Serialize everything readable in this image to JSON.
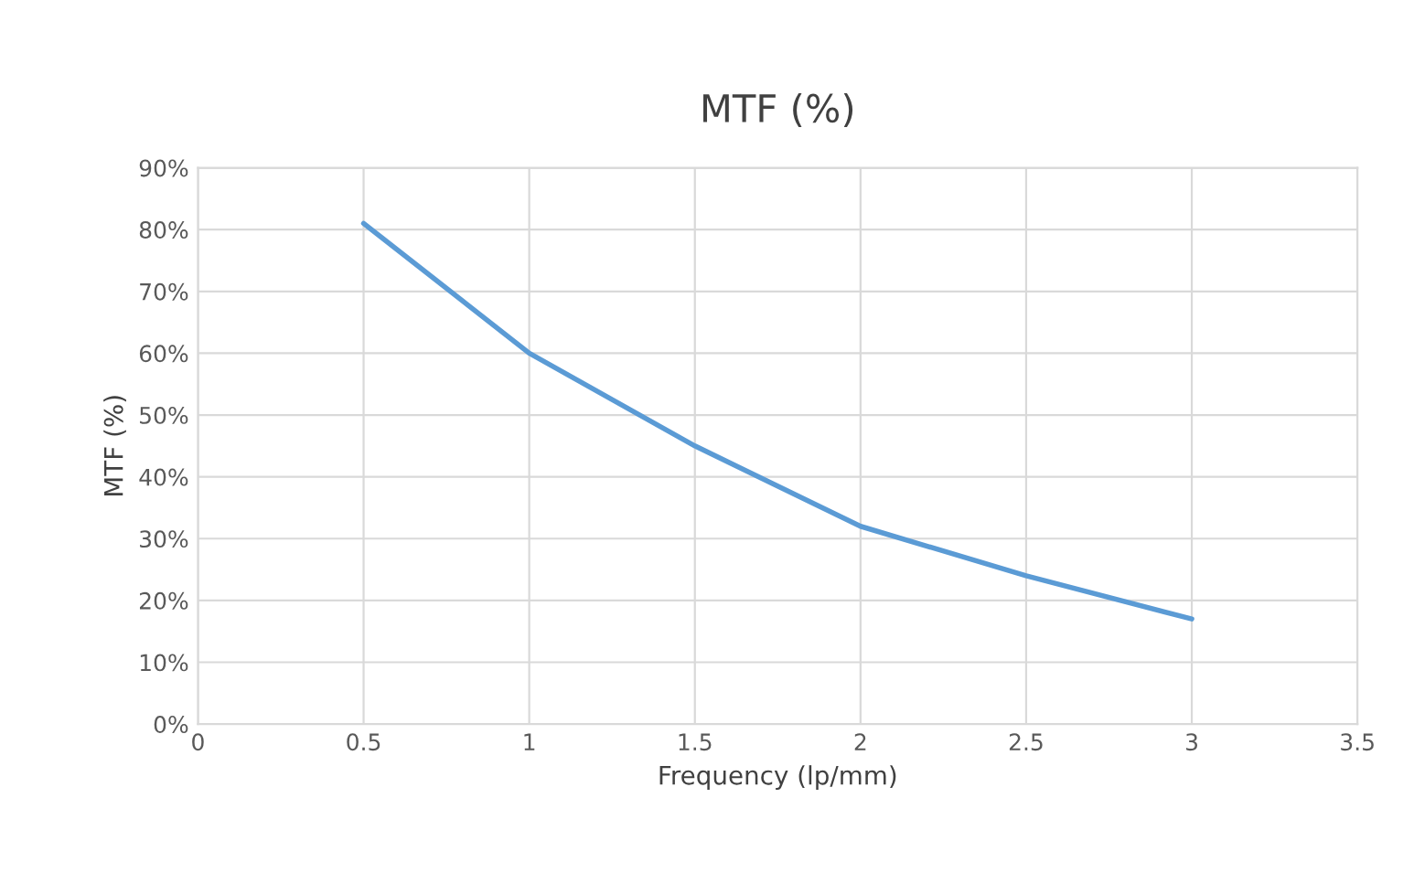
{
  "chart_data": {
    "type": "line",
    "title": "MTF (%)",
    "xlabel": "Frequency (lp/mm)",
    "ylabel": "MTF (%)",
    "x": [
      0.5,
      1,
      1.5,
      2,
      2.5,
      3
    ],
    "series": [
      {
        "color": "#5b9bd5",
        "values": [
          81,
          60,
          45,
          32,
          24,
          17
        ]
      }
    ],
    "xlim": [
      0,
      3.5
    ],
    "xticks": [
      0,
      0.5,
      1,
      1.5,
      2,
      2.5,
      3,
      3.5
    ],
    "ylim": [
      0,
      90
    ],
    "yticks": [
      {
        "value": 0,
        "label": "0%"
      },
      {
        "value": 10,
        "label": "10%"
      },
      {
        "value": 20,
        "label": "20%"
      },
      {
        "value": 30,
        "label": "30%"
      },
      {
        "value": 40,
        "label": "40%"
      },
      {
        "value": 50,
        "label": "50%"
      },
      {
        "value": 60,
        "label": "60%"
      },
      {
        "value": 70,
        "label": "70%"
      },
      {
        "value": 80,
        "label": "80%"
      },
      {
        "value": 90,
        "label": "90%"
      }
    ],
    "grid": true,
    "marker": "none",
    "line_style": "solid"
  }
}
